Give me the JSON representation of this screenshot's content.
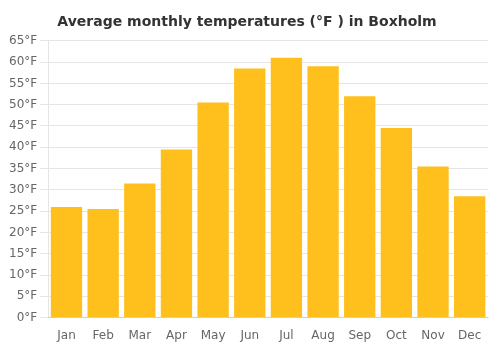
{
  "chart_data": {
    "type": "bar",
    "title": "Average monthly temperatures (°F ) in Boxholm",
    "categories": [
      "Jan",
      "Feb",
      "Mar",
      "Apr",
      "May",
      "Jun",
      "Jul",
      "Aug",
      "Sep",
      "Oct",
      "Nov",
      "Dec"
    ],
    "values": [
      26,
      25.5,
      31.5,
      39.5,
      50.5,
      58.5,
      61,
      59,
      52,
      44.5,
      35.5,
      28.5
    ],
    "color": "#FFC01E",
    "ylim": [
      0,
      65
    ],
    "yticks": [
      {
        "value": 0,
        "label": "0°F"
      },
      {
        "value": 5,
        "label": "5°F"
      },
      {
        "value": 10,
        "label": "10°F"
      },
      {
        "value": 15,
        "label": "15°F"
      },
      {
        "value": 20,
        "label": "20°F"
      },
      {
        "value": 25,
        "label": "25°F"
      },
      {
        "value": 30,
        "label": "30°F"
      },
      {
        "value": 35,
        "label": "35°F"
      },
      {
        "value": 40,
        "label": "40°F"
      },
      {
        "value": 45,
        "label": "45°F"
      },
      {
        "value": 50,
        "label": "50°F"
      },
      {
        "value": 55,
        "label": "55°F"
      },
      {
        "value": 60,
        "label": "60°F"
      },
      {
        "value": 65,
        "label": "65°F"
      }
    ],
    "grid": true
  }
}
